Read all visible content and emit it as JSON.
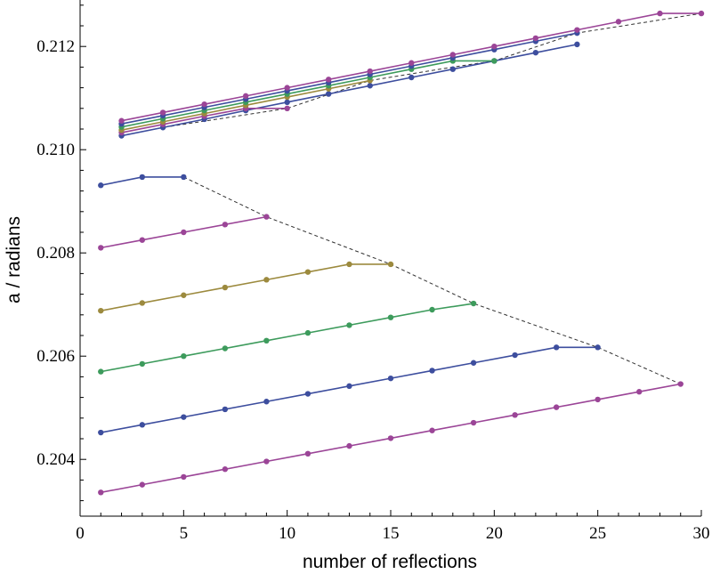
{
  "chart_data": {
    "type": "line",
    "title": "",
    "xlabel": "number of reflections",
    "ylabel": "a / radians",
    "xlim": [
      0,
      30
    ],
    "ylim": [
      0.2029,
      0.2129
    ],
    "xticks": [
      0,
      5,
      10,
      15,
      20,
      25,
      30
    ],
    "yticks": [
      0.204,
      0.206,
      0.208,
      0.21,
      0.212
    ],
    "ytick_labels": [
      "0.204",
      "0.206",
      "0.208",
      "0.210",
      "0.212"
    ],
    "grid": false,
    "colors": {
      "blue": "#3d4e9e",
      "magenta": "#9b4597",
      "gold": "#9c8a3e",
      "green": "#3d9b5c",
      "envelope": "#333333"
    },
    "series": [
      {
        "name": "lower-1",
        "color": "blue",
        "x": [
          1,
          3,
          5
        ],
        "y": [
          0.20931,
          0.20947,
          0.20947
        ]
      },
      {
        "name": "lower-2",
        "color": "magenta",
        "x": [
          1,
          3,
          5,
          7,
          9
        ],
        "y": [
          0.2081,
          0.20825,
          0.2084,
          0.20855,
          0.2087
        ]
      },
      {
        "name": "lower-3",
        "color": "gold",
        "x": [
          1,
          3,
          5,
          7,
          9,
          11,
          13,
          15
        ],
        "y": [
          0.20688,
          0.20703,
          0.20718,
          0.20733,
          0.20748,
          0.20763,
          0.20778,
          0.20778
        ]
      },
      {
        "name": "lower-4",
        "color": "green",
        "x": [
          1,
          3,
          5,
          7,
          9,
          11,
          13,
          15,
          17,
          19
        ],
        "y": [
          0.2057,
          0.20585,
          0.206,
          0.20615,
          0.2063,
          0.20645,
          0.2066,
          0.20675,
          0.2069,
          0.20702
        ]
      },
      {
        "name": "lower-5",
        "color": "blue",
        "x": [
          1,
          3,
          5,
          7,
          9,
          11,
          13,
          15,
          17,
          19,
          21,
          23,
          25
        ],
        "y": [
          0.20452,
          0.20467,
          0.20482,
          0.20497,
          0.20512,
          0.20527,
          0.20542,
          0.20557,
          0.20572,
          0.20587,
          0.20602,
          0.20617,
          0.20617
        ]
      },
      {
        "name": "lower-6",
        "color": "magenta",
        "x": [
          1,
          3,
          5,
          7,
          9,
          11,
          13,
          15,
          17,
          19,
          21,
          23,
          25,
          27,
          29
        ],
        "y": [
          0.20336,
          0.20351,
          0.20366,
          0.20381,
          0.20396,
          0.20411,
          0.20426,
          0.20441,
          0.20456,
          0.20471,
          0.20486,
          0.20501,
          0.20516,
          0.20531,
          0.20546
        ]
      },
      {
        "name": "upper-1",
        "color": "blue",
        "x": [
          2,
          4,
          6,
          8,
          10,
          12,
          14,
          16,
          18,
          20,
          22,
          24
        ],
        "y": [
          0.21027,
          0.21043,
          0.21059,
          0.21076,
          0.21092,
          0.21108,
          0.21124,
          0.2114,
          0.21156,
          0.21172,
          0.21188,
          0.21204
        ]
      },
      {
        "name": "upper-2",
        "color": "magenta",
        "x": [
          2,
          4,
          6,
          8,
          10
        ],
        "y": [
          0.21033,
          0.21049,
          0.21065,
          0.2108,
          0.2108
        ]
      },
      {
        "name": "upper-3",
        "color": "gold",
        "x": [
          2,
          4,
          6,
          8,
          10,
          12,
          14
        ],
        "y": [
          0.21038,
          0.21054,
          0.2107,
          0.21086,
          0.21102,
          0.21118,
          0.21134
        ]
      },
      {
        "name": "upper-4",
        "color": "green",
        "x": [
          2,
          4,
          6,
          8,
          10,
          12,
          14,
          16,
          18,
          20
        ],
        "y": [
          0.21044,
          0.2106,
          0.21076,
          0.21092,
          0.21108,
          0.21124,
          0.2114,
          0.21156,
          0.21172,
          0.21172
        ]
      },
      {
        "name": "upper-5",
        "color": "blue",
        "x": [
          2,
          4,
          6,
          8,
          10,
          12,
          14,
          16,
          18,
          20,
          22,
          24
        ],
        "y": [
          0.2105,
          0.21066,
          0.21082,
          0.21098,
          0.21114,
          0.2113,
          0.21146,
          0.21162,
          0.21178,
          0.21194,
          0.2121,
          0.21226
        ]
      },
      {
        "name": "upper-6",
        "color": "magenta",
        "x": [
          2,
          4,
          6,
          8,
          10,
          12,
          14,
          16,
          18,
          20,
          22,
          24,
          26,
          28,
          30
        ],
        "y": [
          0.21056,
          0.21072,
          0.21088,
          0.21104,
          0.2112,
          0.21136,
          0.21152,
          0.21168,
          0.21184,
          0.212,
          0.21216,
          0.21232,
          0.21248,
          0.21264,
          0.21264
        ]
      }
    ],
    "envelopes": [
      {
        "name": "lower-envelope",
        "style": "dashed",
        "x": [
          5,
          9,
          15,
          19,
          25,
          29
        ],
        "y": [
          0.20947,
          0.2087,
          0.20778,
          0.20702,
          0.20617,
          0.20546
        ]
      },
      {
        "name": "upper-envelope",
        "style": "dashed",
        "x": [
          2,
          4,
          10,
          14,
          18,
          20,
          24,
          30
        ],
        "y": [
          0.21027,
          0.21043,
          0.2108,
          0.21134,
          0.2116,
          0.21172,
          0.21226,
          0.21264
        ]
      }
    ]
  }
}
